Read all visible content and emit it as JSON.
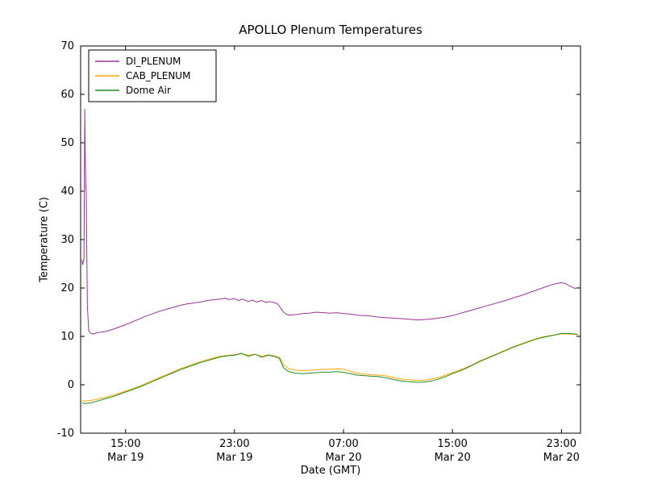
{
  "chart_data": {
    "type": "line",
    "title": "APOLLO Plenum Temperatures",
    "xlabel": "Date (GMT)",
    "ylabel": "Temperature (C)",
    "x_unit": "hours since Mar 19 00:00 GMT",
    "xlim": [
      11.7,
      48.4
    ],
    "ylim": [
      -10,
      70
    ],
    "grid": false,
    "legend_position": "upper left",
    "yticks": [
      -10,
      0,
      10,
      20,
      30,
      40,
      50,
      60,
      70
    ],
    "xticks": [
      {
        "pos": 15,
        "label": "15:00",
        "sublabel": "Mar 19"
      },
      {
        "pos": 23,
        "label": "23:00",
        "sublabel": "Mar 19"
      },
      {
        "pos": 31,
        "label": "07:00",
        "sublabel": "Mar 20"
      },
      {
        "pos": 39,
        "label": "15:00",
        "sublabel": "Mar 20"
      },
      {
        "pos": 47,
        "label": "23:00",
        "sublabel": "Mar 20"
      }
    ],
    "series": [
      {
        "name": "DI_PLENUM",
        "color": "#993399",
        "x": [
          11.8,
          11.85,
          11.9,
          11.95,
          12.0,
          12.05,
          12.08,
          12.12,
          12.15,
          12.2,
          12.3,
          12.4,
          12.6,
          13.0,
          13.5,
          14.0,
          14.5,
          15.0,
          15.5,
          16.0,
          16.5,
          17.0,
          17.5,
          18.0,
          18.5,
          19.0,
          19.5,
          20.0,
          20.5,
          21.0,
          21.5,
          22.0,
          22.3,
          22.6,
          23.0,
          23.3,
          23.6,
          24.0,
          24.3,
          24.6,
          25.0,
          25.3,
          25.6,
          26.0,
          26.2,
          26.4,
          26.6,
          26.8,
          27.0,
          27.5,
          28.0,
          28.5,
          29.0,
          29.5,
          30.0,
          30.5,
          31.0,
          31.5,
          32.0,
          32.5,
          33.0,
          33.5,
          34.0,
          34.5,
          35.0,
          35.5,
          36.0,
          36.5,
          37.0,
          37.5,
          38.0,
          38.5,
          39.0,
          39.5,
          40.0,
          40.5,
          41.0,
          41.5,
          42.0,
          42.5,
          43.0,
          43.5,
          44.0,
          44.5,
          45.0,
          45.5,
          46.0,
          46.3,
          46.6,
          47.0,
          47.3,
          47.6,
          48.0,
          48.2
        ],
        "y": [
          25.8,
          24.8,
          25.5,
          26.2,
          57.0,
          45.0,
          41.0,
          39.5,
          28.0,
          16.0,
          11.2,
          10.7,
          10.5,
          10.8,
          11.0,
          11.4,
          11.9,
          12.4,
          13.0,
          13.6,
          14.2,
          14.7,
          15.2,
          15.6,
          16.0,
          16.4,
          16.7,
          16.9,
          17.1,
          17.4,
          17.6,
          17.7,
          17.9,
          17.6,
          17.8,
          17.4,
          17.7,
          17.2,
          17.5,
          17.1,
          17.4,
          17.0,
          17.2,
          16.9,
          16.6,
          15.8,
          15.0,
          14.6,
          14.4,
          14.5,
          14.7,
          14.8,
          15.0,
          14.9,
          14.8,
          14.9,
          14.7,
          14.6,
          14.4,
          14.3,
          14.2,
          14.0,
          13.9,
          13.8,
          13.7,
          13.6,
          13.5,
          13.4,
          13.5,
          13.6,
          13.8,
          14.0,
          14.3,
          14.7,
          15.1,
          15.5,
          15.9,
          16.3,
          16.7,
          17.1,
          17.5,
          18.0,
          18.4,
          18.9,
          19.4,
          19.9,
          20.4,
          20.7,
          20.9,
          21.1,
          20.9,
          20.4,
          19.9,
          20.1
        ]
      },
      {
        "name": "CAB_PLENUM",
        "color": "#FFA500",
        "x": [
          11.8,
          12.0,
          12.5,
          13.0,
          13.5,
          14.0,
          14.5,
          15.0,
          15.5,
          16.0,
          16.5,
          17.0,
          17.5,
          18.0,
          18.5,
          19.0,
          19.5,
          20.0,
          20.5,
          21.0,
          21.5,
          22.0,
          22.5,
          23.0,
          23.5,
          24.0,
          24.5,
          25.0,
          25.5,
          26.0,
          26.3,
          26.6,
          27.0,
          27.5,
          28.0,
          28.5,
          29.0,
          29.5,
          30.0,
          30.5,
          31.0,
          31.5,
          32.0,
          32.5,
          33.0,
          33.5,
          34.0,
          34.5,
          35.0,
          35.5,
          36.0,
          36.5,
          37.0,
          37.5,
          38.0,
          38.5,
          39.0,
          39.5,
          40.0,
          40.5,
          41.0,
          41.5,
          42.0,
          42.5,
          43.0,
          43.5,
          44.0,
          44.5,
          45.0,
          45.5,
          46.0,
          46.5,
          47.0,
          47.5,
          48.0,
          48.2
        ],
        "y": [
          -3.2,
          -3.4,
          -3.2,
          -2.9,
          -2.6,
          -2.2,
          -1.8,
          -1.3,
          -0.8,
          -0.3,
          0.3,
          0.9,
          1.5,
          2.1,
          2.7,
          3.3,
          3.8,
          4.3,
          4.8,
          5.2,
          5.6,
          5.9,
          6.1,
          6.2,
          6.4,
          6.1,
          6.3,
          5.9,
          6.2,
          5.9,
          5.7,
          4.1,
          3.3,
          3.0,
          2.9,
          3.0,
          3.1,
          3.2,
          3.2,
          3.3,
          3.2,
          2.8,
          2.4,
          2.2,
          2.1,
          2.0,
          1.9,
          1.6,
          1.3,
          1.1,
          1.0,
          0.9,
          1.0,
          1.2,
          1.5,
          2.0,
          2.5,
          3.0,
          3.6,
          4.2,
          4.9,
          5.5,
          6.1,
          6.7,
          7.3,
          7.9,
          8.4,
          8.9,
          9.4,
          9.8,
          10.1,
          10.3,
          10.5,
          10.5,
          10.4,
          10.3
        ]
      },
      {
        "name": "Dome Air",
        "color": "#228B22",
        "x": [
          11.8,
          12.0,
          12.5,
          13.0,
          13.5,
          14.0,
          14.5,
          15.0,
          15.5,
          16.0,
          16.5,
          17.0,
          17.5,
          18.0,
          18.5,
          19.0,
          19.5,
          20.0,
          20.5,
          21.0,
          21.5,
          22.0,
          22.5,
          23.0,
          23.5,
          24.0,
          24.5,
          25.0,
          25.5,
          26.0,
          26.3,
          26.6,
          27.0,
          27.5,
          28.0,
          28.5,
          29.0,
          29.5,
          30.0,
          30.5,
          31.0,
          31.5,
          32.0,
          32.5,
          33.0,
          33.5,
          34.0,
          34.5,
          35.0,
          35.5,
          36.0,
          36.5,
          37.0,
          37.5,
          38.0,
          38.5,
          39.0,
          39.5,
          40.0,
          40.5,
          41.0,
          41.5,
          42.0,
          42.5,
          43.0,
          43.5,
          44.0,
          44.5,
          45.0,
          45.5,
          46.0,
          46.5,
          47.0,
          47.5,
          48.0,
          48.2
        ],
        "y": [
          -3.7,
          -3.9,
          -3.7,
          -3.3,
          -2.9,
          -2.5,
          -2.0,
          -1.5,
          -1.0,
          -0.5,
          0.1,
          0.7,
          1.3,
          1.9,
          2.5,
          3.1,
          3.6,
          4.1,
          4.6,
          5.0,
          5.4,
          5.8,
          6.0,
          6.1,
          6.5,
          5.9,
          6.3,
          5.7,
          6.1,
          5.8,
          5.4,
          3.5,
          2.7,
          2.4,
          2.3,
          2.4,
          2.5,
          2.6,
          2.6,
          2.7,
          2.6,
          2.3,
          2.0,
          1.9,
          1.8,
          1.7,
          1.5,
          1.2,
          0.9,
          0.7,
          0.6,
          0.5,
          0.6,
          0.8,
          1.2,
          1.7,
          2.3,
          2.8,
          3.4,
          4.1,
          4.8,
          5.4,
          6.0,
          6.6,
          7.2,
          7.8,
          8.3,
          8.8,
          9.3,
          9.7,
          10.0,
          10.3,
          10.6,
          10.6,
          10.5,
          10.4
        ]
      }
    ]
  }
}
